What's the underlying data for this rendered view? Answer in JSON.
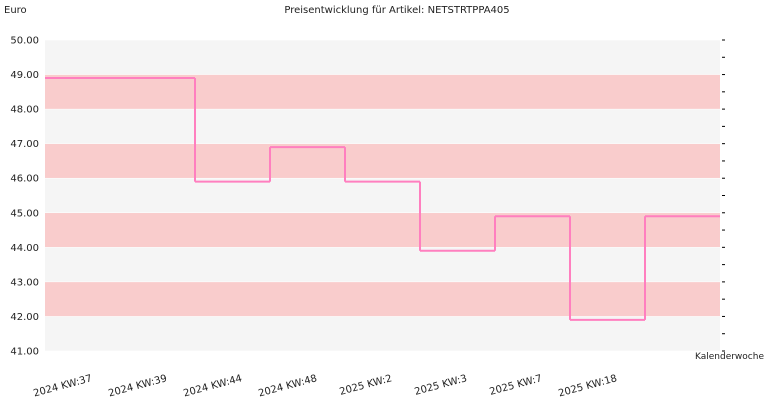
{
  "chart_data": {
    "type": "step",
    "title": "Preisentwicklung für Artikel: NETSTRTPPA405",
    "y_label": "Euro",
    "x_label": "Kalenderwoche",
    "categories": [
      "2024 KW:37",
      "2024 KW:39",
      "2024 KW:44",
      "2024 KW:48",
      "2025 KW:2",
      "2025 KW:3",
      "2025 KW:7",
      "2025 KW:18",
      null
    ],
    "values": [
      48.9,
      48.9,
      45.9,
      46.9,
      45.9,
      43.9,
      44.9,
      41.9,
      44.9
    ],
    "color": "#ff7fbf",
    "ylim": [
      41,
      50
    ],
    "yticks": [
      {
        "value": 41,
        "label": "41.00"
      },
      {
        "value": 42,
        "label": "42.00"
      },
      {
        "value": 43,
        "label": "43.00"
      },
      {
        "value": 44,
        "label": "44.00"
      },
      {
        "value": 45,
        "label": "45.00"
      },
      {
        "value": 46,
        "label": "46.00"
      },
      {
        "value": 47,
        "label": "47.00"
      },
      {
        "value": 48,
        "label": "48.00"
      },
      {
        "value": 49,
        "label": "49.00"
      },
      {
        "value": 50,
        "label": "50.00"
      }
    ],
    "band_colors": [
      "#f5f5f5",
      "#f9cccc"
    ]
  }
}
